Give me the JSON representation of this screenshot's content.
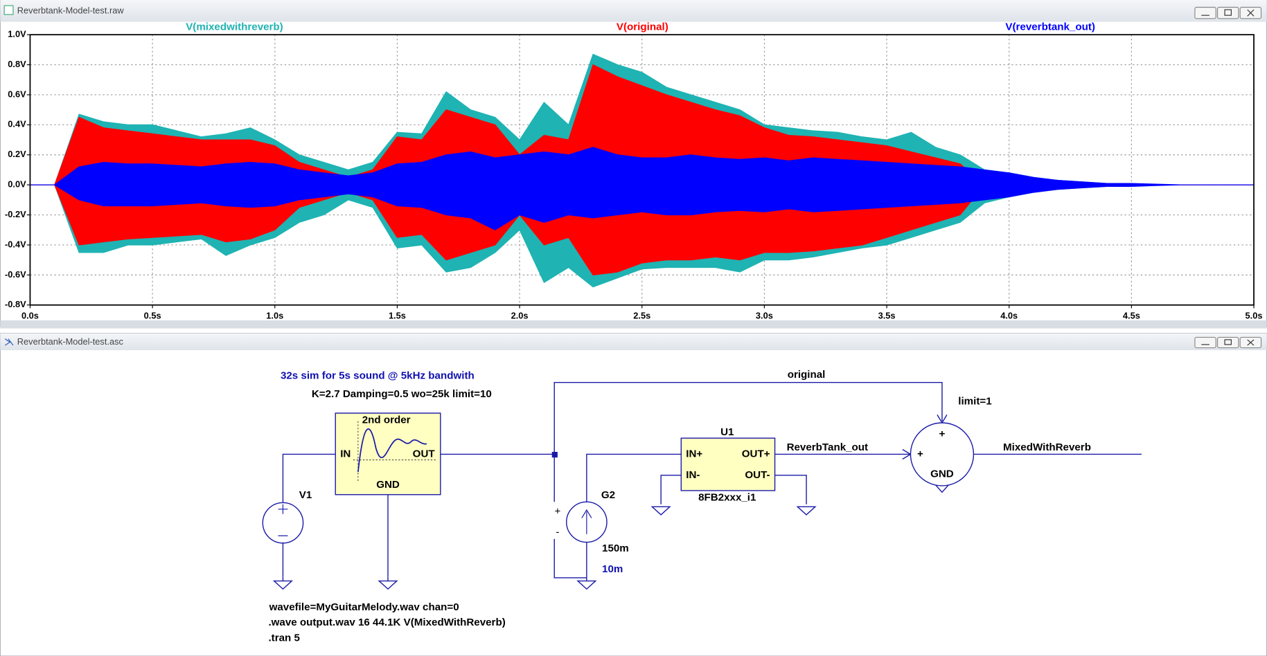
{
  "windows": [
    {
      "title": "Reverbtank-Model-test.raw"
    },
    {
      "title": "Reverbtank-Model-test.asc"
    }
  ],
  "chart_data": {
    "type": "area",
    "x": [
      0,
      0.1,
      0.2,
      0.3,
      0.4,
      0.5,
      0.6,
      0.7,
      0.8,
      0.9,
      1.0,
      1.1,
      1.2,
      1.3,
      1.4,
      1.5,
      1.6,
      1.7,
      1.8,
      1.9,
      2.0,
      2.1,
      2.2,
      2.3,
      2.4,
      2.5,
      2.6,
      2.7,
      2.8,
      2.9,
      3.0,
      3.1,
      3.2,
      3.3,
      3.4,
      3.5,
      3.6,
      3.7,
      3.8,
      3.9,
      4.0,
      4.1,
      4.2,
      4.3,
      4.4,
      4.5,
      4.6,
      4.7,
      4.8,
      4.9,
      5.0
    ],
    "series": [
      {
        "name": "V(mixedwithreverb)",
        "color": "#1fb3b3",
        "upper": [
          0,
          0,
          0.47,
          0.42,
          0.4,
          0.4,
          0.36,
          0.32,
          0.34,
          0.38,
          0.3,
          0.2,
          0.15,
          0.1,
          0.15,
          0.35,
          0.34,
          0.62,
          0.5,
          0.45,
          0.3,
          0.55,
          0.4,
          0.87,
          0.8,
          0.75,
          0.65,
          0.6,
          0.55,
          0.5,
          0.4,
          0.38,
          0.36,
          0.35,
          0.32,
          0.3,
          0.35,
          0.25,
          0.2,
          0.1,
          0.08,
          0.05,
          0.03,
          0.02,
          0.01,
          0,
          0,
          0,
          0,
          0,
          0
        ],
        "lower": [
          0,
          0,
          -0.45,
          -0.45,
          -0.4,
          -0.4,
          -0.38,
          -0.36,
          -0.47,
          -0.4,
          -0.35,
          -0.25,
          -0.2,
          -0.1,
          -0.15,
          -0.42,
          -0.4,
          -0.58,
          -0.55,
          -0.45,
          -0.3,
          -0.65,
          -0.55,
          -0.68,
          -0.62,
          -0.56,
          -0.55,
          -0.55,
          -0.55,
          -0.58,
          -0.5,
          -0.5,
          -0.48,
          -0.45,
          -0.42,
          -0.4,
          -0.35,
          -0.3,
          -0.25,
          -0.12,
          -0.08,
          -0.05,
          -0.03,
          -0.02,
          -0.01,
          0,
          0,
          0,
          0,
          0,
          0
        ]
      },
      {
        "name": "V(original)",
        "color": "#ff0000",
        "upper": [
          0,
          0,
          0.45,
          0.38,
          0.36,
          0.34,
          0.32,
          0.3,
          0.3,
          0.3,
          0.26,
          0.15,
          0.1,
          0.05,
          0.1,
          0.32,
          0.3,
          0.5,
          0.45,
          0.4,
          0.2,
          0.33,
          0.3,
          0.8,
          0.72,
          0.66,
          0.6,
          0.55,
          0.5,
          0.46,
          0.38,
          0.33,
          0.32,
          0.3,
          0.28,
          0.26,
          0.22,
          0.18,
          0.14,
          0,
          0,
          0,
          0,
          0,
          0,
          0,
          0,
          0,
          0,
          0,
          0
        ],
        "lower": [
          0,
          0,
          -0.4,
          -0.38,
          -0.36,
          -0.35,
          -0.34,
          -0.33,
          -0.38,
          -0.36,
          -0.3,
          -0.15,
          -0.1,
          -0.05,
          -0.1,
          -0.35,
          -0.33,
          -0.5,
          -0.45,
          -0.4,
          -0.2,
          -0.4,
          -0.35,
          -0.6,
          -0.58,
          -0.52,
          -0.5,
          -0.5,
          -0.48,
          -0.5,
          -0.45,
          -0.45,
          -0.44,
          -0.42,
          -0.4,
          -0.35,
          -0.3,
          -0.25,
          -0.2,
          0,
          0,
          0,
          0,
          0,
          0,
          0,
          0,
          0,
          0,
          0,
          0
        ]
      },
      {
        "name": "V(reverbtank_out)",
        "color": "#0000ff",
        "upper": [
          0,
          0,
          0.12,
          0.15,
          0.14,
          0.14,
          0.13,
          0.12,
          0.14,
          0.15,
          0.14,
          0.1,
          0.08,
          0.06,
          0.08,
          0.14,
          0.15,
          0.2,
          0.22,
          0.18,
          0.2,
          0.22,
          0.2,
          0.25,
          0.2,
          0.18,
          0.18,
          0.2,
          0.18,
          0.17,
          0.18,
          0.16,
          0.18,
          0.17,
          0.16,
          0.15,
          0.14,
          0.13,
          0.12,
          0.1,
          0.08,
          0.05,
          0.03,
          0.02,
          0.01,
          0.01,
          0.005,
          0,
          0,
          0,
          0
        ],
        "lower": [
          0,
          0,
          -0.1,
          -0.14,
          -0.14,
          -0.14,
          -0.13,
          -0.12,
          -0.14,
          -0.15,
          -0.14,
          -0.1,
          -0.08,
          -0.06,
          -0.08,
          -0.14,
          -0.15,
          -0.2,
          -0.22,
          -0.3,
          -0.2,
          -0.25,
          -0.2,
          -0.22,
          -0.2,
          -0.18,
          -0.2,
          -0.2,
          -0.18,
          -0.17,
          -0.18,
          -0.16,
          -0.18,
          -0.17,
          -0.16,
          -0.15,
          -0.14,
          -0.13,
          -0.12,
          -0.1,
          -0.08,
          -0.05,
          -0.03,
          -0.02,
          -0.01,
          -0.01,
          -0.005,
          0,
          0,
          0,
          0
        ]
      }
    ],
    "xlim": [
      0,
      5
    ],
    "xticks": [
      {
        "value": 0,
        "label": "0.0s"
      },
      {
        "value": 0.5,
        "label": "0.5s"
      },
      {
        "value": 1,
        "label": "1.0s"
      },
      {
        "value": 1.5,
        "label": "1.5s"
      },
      {
        "value": 2,
        "label": "2.0s"
      },
      {
        "value": 2.5,
        "label": "2.5s"
      },
      {
        "value": 3,
        "label": "3.0s"
      },
      {
        "value": 3.5,
        "label": "3.5s"
      },
      {
        "value": 4,
        "label": "4.0s"
      },
      {
        "value": 4.5,
        "label": "4.5s"
      },
      {
        "value": 5,
        "label": "5.0s"
      }
    ],
    "ylim": [
      -0.8,
      1
    ],
    "yticks": [
      {
        "value": 1,
        "label": "1.0V"
      },
      {
        "value": 0.8,
        "label": "0.8V"
      },
      {
        "value": 0.6,
        "label": "0.6V"
      },
      {
        "value": 0.4,
        "label": "0.4V"
      },
      {
        "value": 0.2,
        "label": "0.2V"
      },
      {
        "value": 0,
        "label": "0.0V"
      },
      {
        "value": -0.2,
        "label": "-0.2V"
      },
      {
        "value": -0.4,
        "label": "-0.4V"
      },
      {
        "value": -0.6,
        "label": "-0.6V"
      },
      {
        "value": -0.8,
        "label": "-0.8V"
      }
    ],
    "grid": true
  },
  "schematic": {
    "comment": "32s sim for 5s sound @ 5kHz bandwith",
    "filter_params": "K=2.7 Damping=0.5 wo=25k limit=10",
    "filter": {
      "plot_label": "2nd order",
      "in": "IN",
      "out": "OUT",
      "gnd": "GND"
    },
    "v1": {
      "name": "V1",
      "value": "wavefile=MyGuitarMelody.wav chan=0"
    },
    "directives": [
      ".wave output.wav 16 44.1K V(MixedWithReverb)",
      ".tran 5"
    ],
    "g2": {
      "name": "G2",
      "value": "150m",
      "extra": "10m"
    },
    "u1": {
      "name": "U1",
      "model": "8FB2xxx_i1",
      "in_plus": "IN+",
      "in_minus": "IN-",
      "out_plus": "OUT+",
      "out_minus": "OUT-"
    },
    "nets": {
      "original": "original",
      "reverb": "ReverbTank_out",
      "mixed": "MixedWithReverb"
    },
    "summer": {
      "param": "limit=1",
      "plus_top": "+",
      "plus_left": "+",
      "gnd": "GND"
    }
  }
}
